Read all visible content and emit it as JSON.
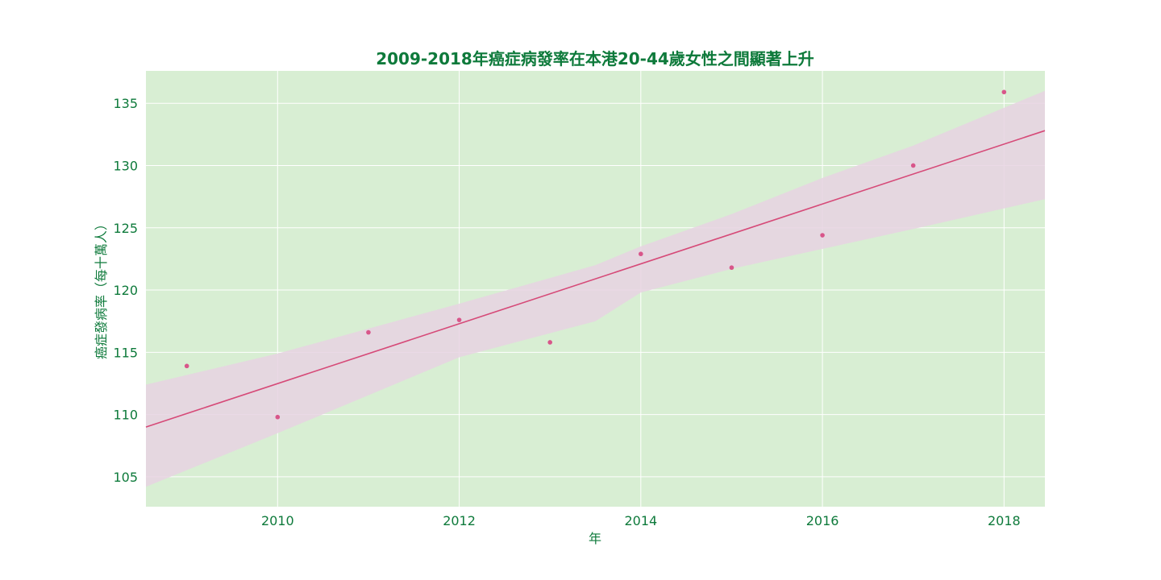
{
  "colors": {
    "background": "#ffffff",
    "plot_background": "#d8eed3",
    "grid": "#ffffff",
    "text": "#0e7a3b",
    "line": "#d64a78",
    "points": "#d8568a",
    "band": "#e8d2e2"
  },
  "chart_data": {
    "type": "scatter",
    "title": "2009-2018年癌症病發率在本港20-44歲女性之間顯著上升",
    "xlabel": "年",
    "ylabel": "癌症發病率（每十萬人）",
    "xlim": [
      2008.55,
      2018.45
    ],
    "ylim": [
      102.6,
      137.6
    ],
    "x_ticks": [
      2010,
      2012,
      2014,
      2016,
      2018
    ],
    "y_ticks": [
      105,
      110,
      115,
      120,
      125,
      130,
      135
    ],
    "grid": true,
    "legend": "none",
    "series": [
      {
        "type": "scatter",
        "x": [
          2009,
          2010,
          2011,
          2012,
          2013,
          2014,
          2015,
          2016,
          2017,
          2018
        ],
        "y": [
          113.9,
          109.8,
          116.6,
          117.6,
          115.8,
          122.9,
          121.8,
          124.4,
          130.0,
          135.9
        ]
      }
    ],
    "regression": {
      "x": [
        2008.55,
        2018.45
      ],
      "y": [
        109.0,
        132.8
      ]
    },
    "confidence_band": {
      "x": [
        2008.55,
        2010.0,
        2012.0,
        2013.5,
        2014.0,
        2015.0,
        2016.0,
        2017.0,
        2018.45
      ],
      "upper": [
        112.4,
        114.9,
        118.9,
        122.0,
        123.5,
        126.1,
        129.0,
        131.6,
        136.0
      ],
      "lower": [
        104.2,
        108.5,
        114.6,
        117.5,
        119.8,
        121.7,
        123.3,
        124.9,
        127.3
      ]
    }
  }
}
